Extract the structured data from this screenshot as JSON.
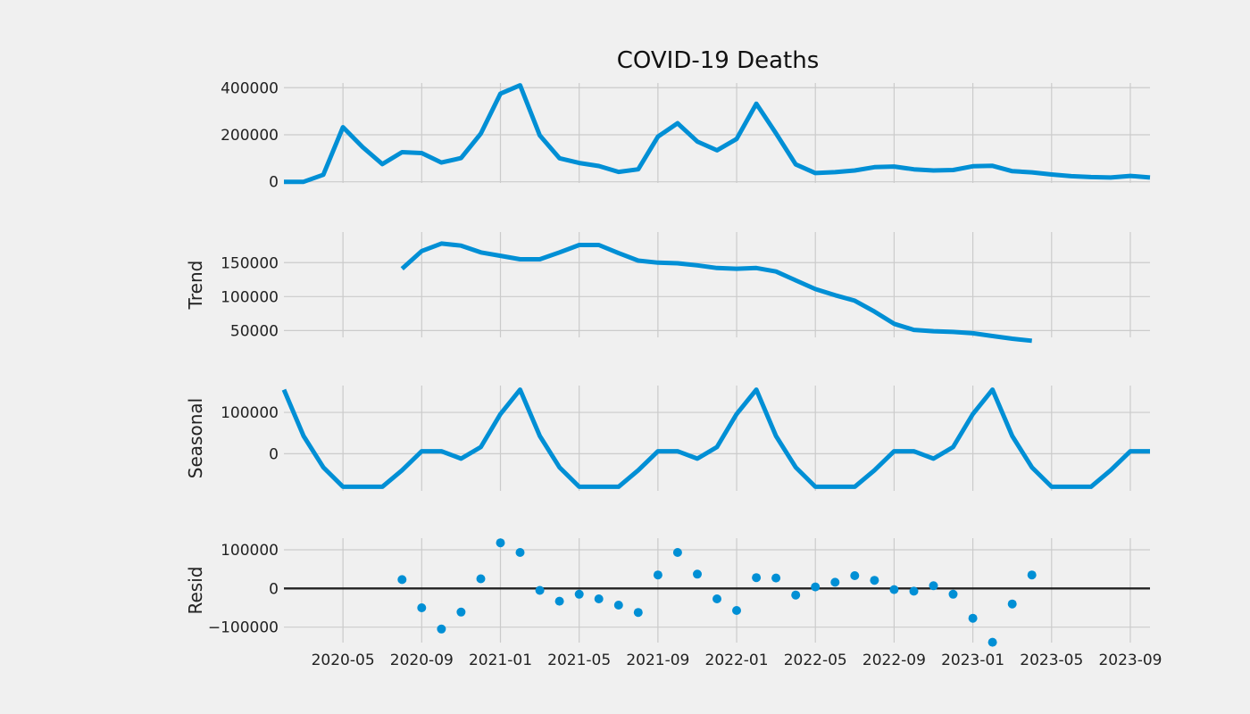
{
  "chart_data": {
    "type": "line",
    "title": "COVID-19 Deaths",
    "x": [
      "2020-02",
      "2020-03",
      "2020-04",
      "2020-05",
      "2020-06",
      "2020-07",
      "2020-08",
      "2020-09",
      "2020-10",
      "2020-11",
      "2020-12",
      "2021-01",
      "2021-02",
      "2021-03",
      "2021-04",
      "2021-05",
      "2021-06",
      "2021-07",
      "2021-08",
      "2021-09",
      "2021-10",
      "2021-11",
      "2021-12",
      "2022-01",
      "2022-02",
      "2022-03",
      "2022-04",
      "2022-05",
      "2022-06",
      "2022-07",
      "2022-08",
      "2022-09",
      "2022-10",
      "2022-11",
      "2022-12",
      "2023-01",
      "2023-02",
      "2023-03",
      "2023-04",
      "2023-05",
      "2023-06",
      "2023-07",
      "2023-08",
      "2023-09",
      "2023-10"
    ],
    "xtick_labels": [
      "2020-05",
      "2020-09",
      "2021-01",
      "2021-05",
      "2021-09",
      "2022-01",
      "2022-05",
      "2022-09",
      "2023-01",
      "2023-05",
      "2023-09"
    ],
    "accent_color": "#008fd5",
    "panels": [
      {
        "ylabel": "",
        "style": "line",
        "ylim": [
          -5000,
          420000
        ],
        "yticks": [
          0,
          200000,
          400000
        ],
        "ytick_labels": [
          "0",
          "200000",
          "400000"
        ],
        "values": [
          0,
          0,
          30000,
          232000,
          147000,
          75000,
          126000,
          122000,
          82000,
          101000,
          205000,
          375000,
          410000,
          197000,
          100000,
          80000,
          67000,
          42000,
          53000,
          192000,
          249000,
          171000,
          134000,
          182000,
          332000,
          206000,
          74000,
          37000,
          41000,
          48000,
          62000,
          65000,
          53000,
          48000,
          50000,
          66000,
          68000,
          45000,
          40000,
          31000,
          24000,
          20000,
          18000,
          25000,
          18000
        ]
      },
      {
        "ylabel": "Trend",
        "style": "line",
        "ylim": [
          40000,
          195000
        ],
        "yticks": [
          50000,
          100000,
          150000
        ],
        "ytick_labels": [
          "50000",
          "100000",
          "150000"
        ],
        "values": [
          null,
          null,
          null,
          null,
          null,
          null,
          141000,
          167000,
          178000,
          175000,
          165000,
          160000,
          155000,
          155000,
          165000,
          176000,
          176000,
          164000,
          153000,
          150000,
          149000,
          146000,
          142000,
          141000,
          142000,
          137000,
          124000,
          111000,
          102000,
          94000,
          78000,
          60000,
          51000,
          49000,
          48000,
          46000,
          42000,
          38000,
          35000,
          null,
          null,
          null,
          null,
          null,
          null
        ]
      },
      {
        "ylabel": "Seasonal",
        "style": "line",
        "ylim": [
          -90000,
          165000
        ],
        "yticks": [
          0,
          100000
        ],
        "ytick_labels": [
          "0",
          "100000"
        ],
        "values": [
          155000,
          43000,
          -33000,
          -80000,
          -80000,
          -80000,
          -40000,
          6000,
          6000,
          -12000,
          16000,
          96000,
          155000,
          43000,
          -33000,
          -80000,
          -80000,
          -80000,
          -40000,
          6000,
          6000,
          -12000,
          16000,
          96000,
          155000,
          43000,
          -33000,
          -80000,
          -80000,
          -80000,
          -40000,
          6000,
          6000,
          -12000,
          16000,
          96000,
          155000,
          43000,
          -33000,
          -80000,
          -80000,
          -80000,
          -40000,
          6000,
          6000
        ]
      },
      {
        "ylabel": "Resid",
        "style": "scatter",
        "ylim": [
          -140000,
          130000
        ],
        "yticks": [
          -100000,
          0,
          100000
        ],
        "ytick_labels": [
          "−100000",
          "0",
          "100000"
        ],
        "zero_line": true,
        "values": [
          null,
          null,
          null,
          null,
          null,
          null,
          23000,
          -50000,
          -105000,
          -61000,
          25000,
          118000,
          93000,
          -5000,
          -33000,
          -15000,
          -27000,
          -43000,
          -62000,
          35000,
          93000,
          37000,
          -27000,
          -57000,
          28000,
          27000,
          -17000,
          4000,
          16000,
          33000,
          21000,
          -3000,
          -7000,
          7000,
          -15000,
          -77000,
          -139000,
          -40000,
          35000,
          null,
          null,
          null,
          null,
          null,
          null
        ]
      }
    ]
  }
}
